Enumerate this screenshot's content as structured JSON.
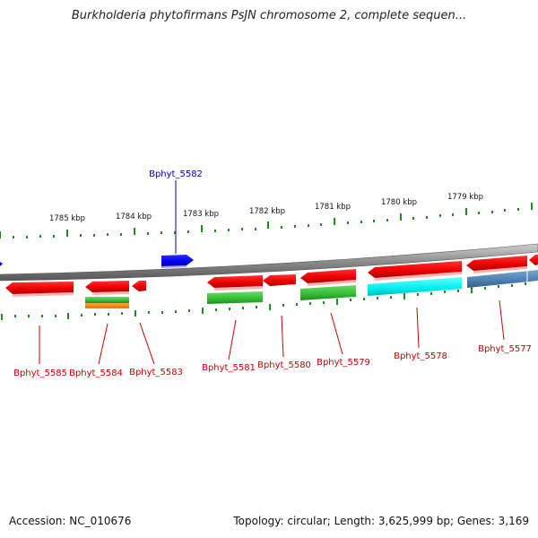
{
  "title": "Burkholderia phytofirmans PsJN chromosome 2, complete sequen...",
  "footer": {
    "accession": "Accession: NC_010676",
    "summary": "Topology: circular; Length: 3,625,999 bp; Genes: 3,169"
  },
  "colors": {
    "backbone": "#8a8a8a",
    "ruler_ticks": "#1f8a1f",
    "forward_gene": "#0000ee",
    "reverse_gene": "#ee0000",
    "cds_green": "#33bb33",
    "cds_orange": "#ff8800",
    "cds_cyan": "#00eeee",
    "cds_steelblue": "#4a7fb0",
    "label_forward": "#0000aa",
    "label_reverse": "#cc0000"
  },
  "ruler": {
    "tick_labels": [
      "1785 kbp",
      "1784 kbp",
      "1783 kbp",
      "1782 kbp",
      "1781 kbp",
      "1780 kbp",
      "1779 kbp"
    ]
  },
  "genes": [
    {
      "name": "Bphyt_5585",
      "strand": "reverse",
      "cds_color": null
    },
    {
      "name": "Bphyt_5584",
      "strand": "reverse",
      "cds_color": "green+orange"
    },
    {
      "name": "Bphyt_5583",
      "strand": "reverse",
      "cds_color": null
    },
    {
      "name": "Bphyt_5582",
      "strand": "forward",
      "cds_color": null
    },
    {
      "name": "Bphyt_5581",
      "strand": "reverse",
      "cds_color": "green"
    },
    {
      "name": "Bphyt_5580",
      "strand": "reverse",
      "cds_color": null
    },
    {
      "name": "Bphyt_5579",
      "strand": "reverse",
      "cds_color": "green"
    },
    {
      "name": "Bphyt_5578",
      "strand": "reverse",
      "cds_color": "cyan"
    },
    {
      "name": "Bphyt_5577",
      "strand": "reverse",
      "cds_color": "steelblue"
    }
  ]
}
